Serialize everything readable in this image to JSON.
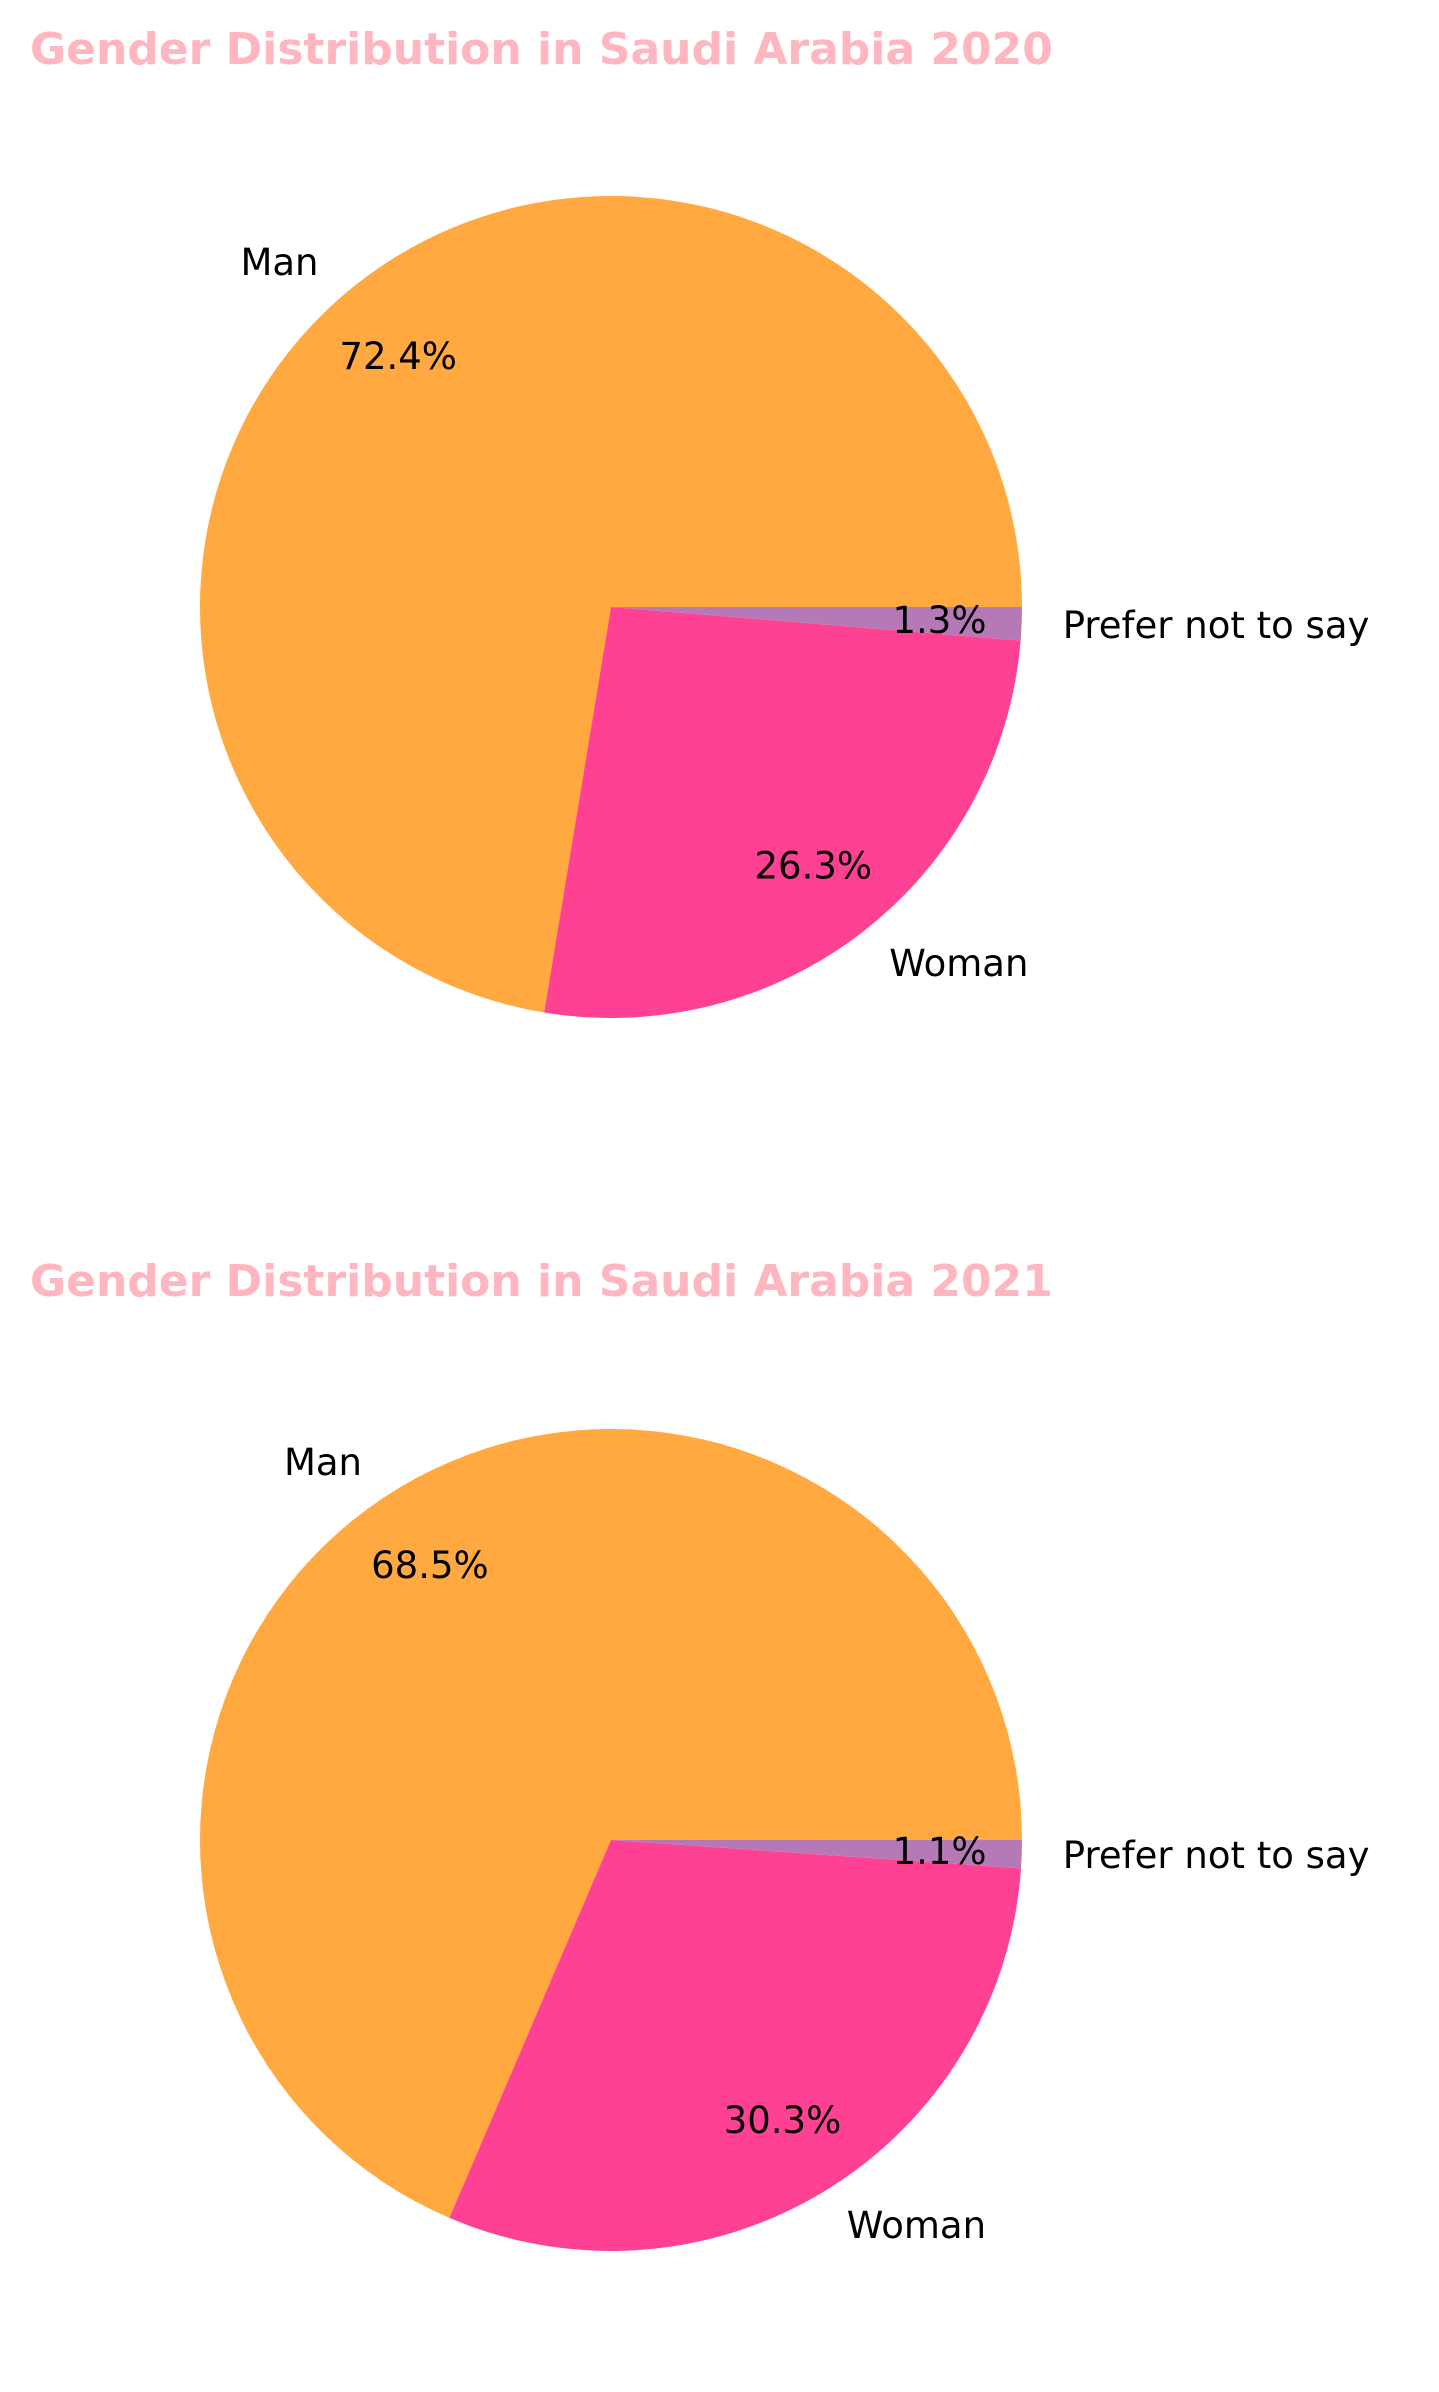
{
  "chart_data": [
    {
      "type": "pie",
      "title": "Gender Distribution in Saudi Arabia 2020",
      "title_color": "#FFB6C1",
      "start_angle_deg": 0,
      "direction": "counterclockwise",
      "slices": [
        {
          "label": "Man",
          "value": 72.4,
          "pct_label": "72.4%",
          "color": "#FFA940"
        },
        {
          "label": "Woman",
          "value": 26.3,
          "pct_label": "26.3%",
          "color": "#FF4193"
        },
        {
          "label": "Prefer not to say",
          "value": 1.3,
          "pct_label": "1.3%",
          "color": "#B57AB5"
        }
      ]
    },
    {
      "type": "pie",
      "title": "Gender Distribution in Saudi Arabia 2021",
      "title_color": "#FFB6C1",
      "start_angle_deg": 0,
      "direction": "counterclockwise",
      "slices": [
        {
          "label": "Man",
          "value": 68.5,
          "pct_label": "68.5%",
          "color": "#FFA940"
        },
        {
          "label": "Woman",
          "value": 30.3,
          "pct_label": "30.3%",
          "color": "#FF4193"
        },
        {
          "label": "Prefer not to say",
          "value": 1.1,
          "pct_label": "1.1%",
          "color": "#B57AB5"
        }
      ]
    }
  ]
}
